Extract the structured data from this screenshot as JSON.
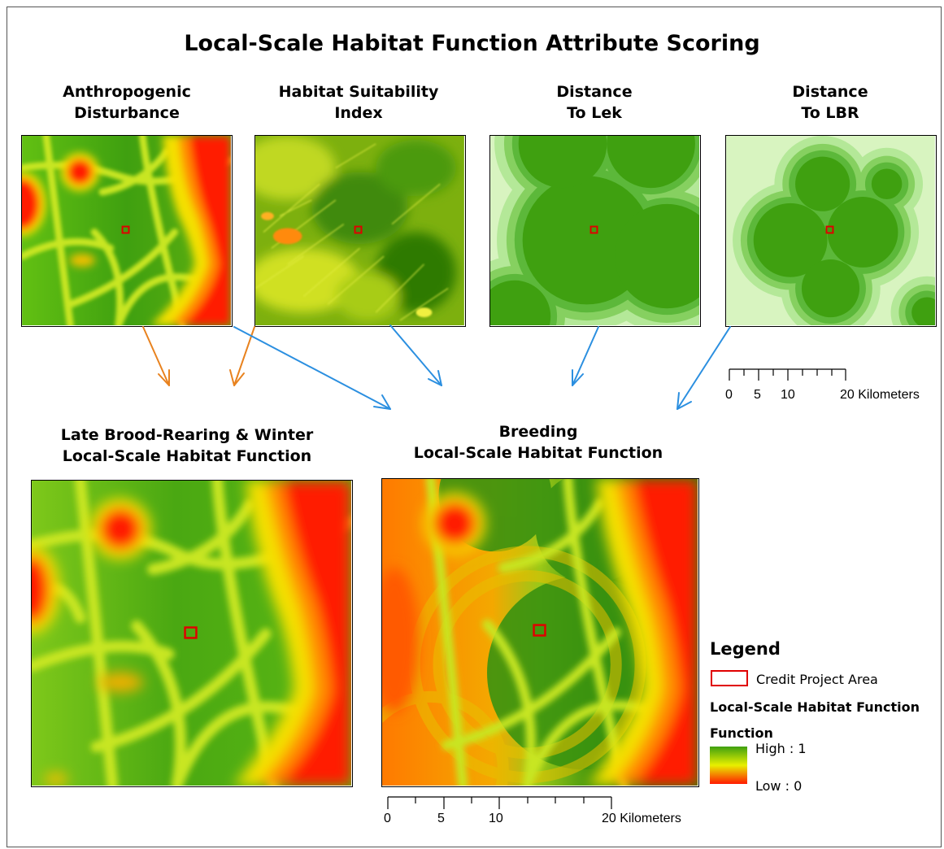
{
  "title": "Local-Scale Habitat Function Attribute Scoring",
  "top_panels": [
    {
      "line1": "Anthropogenic",
      "line2": "Disturbance"
    },
    {
      "line1": "Habitat Suitability",
      "line2": "Index"
    },
    {
      "line1": "Distance",
      "line2": "To Lek"
    },
    {
      "line1": "Distance",
      "line2": "To LBR"
    }
  ],
  "bottom_panels": [
    {
      "line1": "Late Brood-Rearing & Winter",
      "line2": "Local-Scale Habitat Function"
    },
    {
      "line1": "Breeding",
      "line2": "Local-Scale Habitat Function"
    }
  ],
  "scalebar_small": {
    "labels": [
      "0",
      "5",
      "10",
      "20 Kilometers"
    ]
  },
  "scalebar_large": {
    "labels": [
      "0",
      "5",
      "10",
      "20 Kilometers"
    ]
  },
  "legend": {
    "title": "Legend",
    "project_area": "Credit Project Area",
    "layer_name": "Local-Scale Habitat Function",
    "field_name": "Function",
    "high": "High : 1",
    "low": "Low : 0"
  },
  "colors": {
    "arrow_orange": "#e8821e",
    "arrow_blue": "#2b8fe0",
    "high": "#3fa010",
    "mid": "#e8f000",
    "low": "#ff1a00",
    "project_area": "#e00000"
  }
}
